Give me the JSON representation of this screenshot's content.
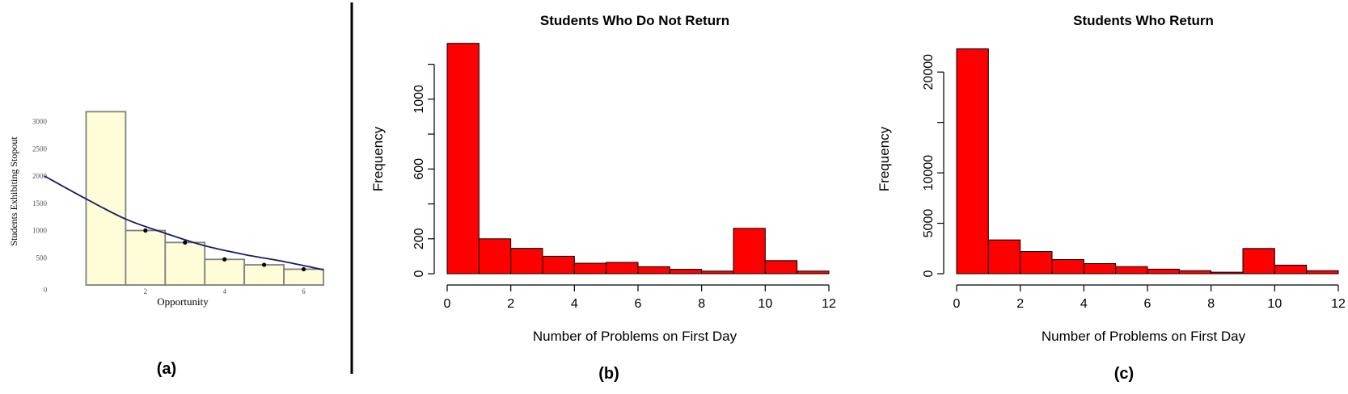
{
  "colors": {
    "panel_a_fill": "#fffdd8",
    "panel_a_edge": "#808080",
    "panel_a_curve": "#1a1a66",
    "bar_fill": "#ff0000",
    "axis": "#000000",
    "divider": "#000000"
  },
  "panel_labels": [
    "(a)",
    "(b)",
    "(c)"
  ],
  "chart_data": [
    {
      "id": "a",
      "type": "bar",
      "title": "",
      "xlabel": "Opportunity",
      "ylabel": "Students Exhibiting Stopout",
      "xlim": [
        0,
        6.5
      ],
      "ylim": [
        0,
        3200
      ],
      "xticks": [
        0,
        2,
        4,
        6
      ],
      "yticks": [
        500,
        1000,
        1500,
        2000,
        2500,
        3000
      ],
      "origin_label": "0",
      "categories": [
        1,
        2,
        3,
        4,
        5,
        6
      ],
      "values": [
        3180,
        1000,
        780,
        470,
        370,
        290
      ],
      "points": [
        [
          2,
          1000
        ],
        [
          3,
          780
        ],
        [
          4,
          470
        ],
        [
          5,
          370
        ],
        [
          6,
          290
        ]
      ],
      "fit_curve": [
        [
          -0.5,
          2000
        ],
        [
          0.5,
          1580
        ],
        [
          1.5,
          1210
        ],
        [
          2.5,
          950
        ],
        [
          3.5,
          720
        ],
        [
          4.5,
          560
        ],
        [
          5.5,
          430
        ],
        [
          6.5,
          280
        ]
      ]
    },
    {
      "id": "b",
      "type": "bar",
      "title": "Students Who Do Not Return",
      "xlabel": "Number of Problems on First Day",
      "ylabel": "Frequency",
      "xlim": [
        0,
        12
      ],
      "ylim": [
        0,
        1300
      ],
      "xticks": [
        0,
        2,
        4,
        6,
        8,
        10,
        12
      ],
      "yticks": [
        0,
        200,
        400,
        600,
        800,
        1000,
        1200
      ],
      "ytick_labels": [
        "0",
        "200",
        "",
        "600",
        "",
        "1000",
        ""
      ],
      "bins": [
        [
          0,
          1
        ],
        [
          1,
          2
        ],
        [
          2,
          3
        ],
        [
          3,
          4
        ],
        [
          4,
          5
        ],
        [
          5,
          6
        ],
        [
          6,
          7
        ],
        [
          7,
          8
        ],
        [
          8,
          9
        ],
        [
          9,
          10
        ],
        [
          10,
          11
        ],
        [
          11,
          12
        ]
      ],
      "values": [
        1320,
        200,
        145,
        100,
        60,
        65,
        40,
        25,
        15,
        260,
        75,
        15
      ]
    },
    {
      "id": "c",
      "type": "bar",
      "title": "Students Who Return",
      "xlabel": "Number of Problems on First Day",
      "ylabel": "Frequency",
      "xlim": [
        0,
        12
      ],
      "ylim": [
        0,
        22500
      ],
      "xticks": [
        0,
        2,
        4,
        6,
        8,
        10,
        12
      ],
      "yticks": [
        0,
        5000,
        10000,
        15000,
        20000
      ],
      "ytick_labels": [
        "0",
        "5000",
        "10000",
        "",
        "20000"
      ],
      "bins": [
        [
          0,
          1
        ],
        [
          1,
          2
        ],
        [
          2,
          3
        ],
        [
          3,
          4
        ],
        [
          4,
          5
        ],
        [
          5,
          6
        ],
        [
          6,
          7
        ],
        [
          7,
          8
        ],
        [
          8,
          9
        ],
        [
          9,
          10
        ],
        [
          10,
          11
        ],
        [
          11,
          12
        ]
      ],
      "values": [
        22300,
        3350,
        2200,
        1400,
        1000,
        700,
        450,
        300,
        150,
        2500,
        850,
        300
      ]
    }
  ]
}
